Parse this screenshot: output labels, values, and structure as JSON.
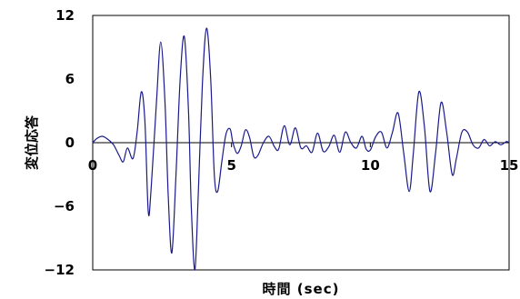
{
  "chart_data": {
    "type": "line",
    "xlabel": "時間 (sec)",
    "ylabel": "変位応答",
    "xlim": [
      0,
      15
    ],
    "ylim": [
      -12,
      12
    ],
    "x_ticks": [
      "0",
      "5",
      "10",
      "15"
    ],
    "y_ticks": [
      "12",
      "6",
      "0",
      "−6",
      "−12"
    ],
    "grid": false,
    "line_color": "#1a1a8c",
    "series": [
      {
        "x": [
          0.0,
          0.15,
          0.35,
          0.55,
          0.75,
          0.95,
          1.1,
          1.25,
          1.45,
          1.6,
          1.75,
          1.88,
          2.0,
          2.1,
          2.3,
          2.45,
          2.6,
          2.72,
          2.85,
          3.0,
          3.15,
          3.3,
          3.45,
          3.55,
          3.68,
          3.8,
          3.95,
          4.1,
          4.25,
          4.38,
          4.5,
          4.65,
          4.8,
          4.95,
          5.05,
          5.2,
          5.35,
          5.5,
          5.65,
          5.8,
          5.95,
          6.15,
          6.35,
          6.55,
          6.7,
          6.9,
          7.1,
          7.3,
          7.5,
          7.7,
          7.9,
          8.1,
          8.3,
          8.5,
          8.7,
          8.9,
          9.1,
          9.3,
          9.5,
          9.7,
          9.85,
          10.0,
          10.2,
          10.4,
          10.6,
          10.8,
          11.0,
          11.2,
          11.4,
          11.55,
          11.75,
          11.95,
          12.15,
          12.35,
          12.55,
          12.75,
          12.95,
          13.1,
          13.3,
          13.5,
          13.7,
          13.9,
          14.1,
          14.3,
          14.5,
          14.7,
          14.9,
          15.0
        ],
        "y": [
          0.0,
          0.4,
          0.6,
          0.3,
          -0.2,
          -1.2,
          -1.8,
          -0.5,
          -1.5,
          1.0,
          4.8,
          2.0,
          -6.5,
          -4.5,
          4.0,
          9.5,
          4.0,
          -5.0,
          -10.4,
          -3.0,
          6.0,
          10.0,
          3.0,
          -6.0,
          -12.0,
          -5.0,
          5.5,
          10.8,
          6.0,
          -3.0,
          -4.6,
          -1.8,
          0.8,
          1.3,
          0.0,
          -1.0,
          -0.3,
          1.2,
          0.5,
          -1.3,
          -1.2,
          0.0,
          0.6,
          -0.4,
          -0.6,
          1.6,
          -0.2,
          1.4,
          -0.5,
          -0.3,
          -0.9,
          0.9,
          -0.8,
          -0.4,
          0.7,
          -0.9,
          1.0,
          0.0,
          -0.5,
          0.6,
          -0.6,
          -0.7,
          0.6,
          1.0,
          -0.5,
          1.0,
          2.8,
          -0.9,
          -4.6,
          -1.0,
          4.8,
          1.5,
          -4.6,
          -1.0,
          3.8,
          1.0,
          -3.0,
          -1.5,
          1.0,
          1.0,
          -0.2,
          -0.5,
          0.3,
          -0.3,
          0.1,
          -0.2,
          0.1,
          0.0
        ]
      }
    ]
  }
}
